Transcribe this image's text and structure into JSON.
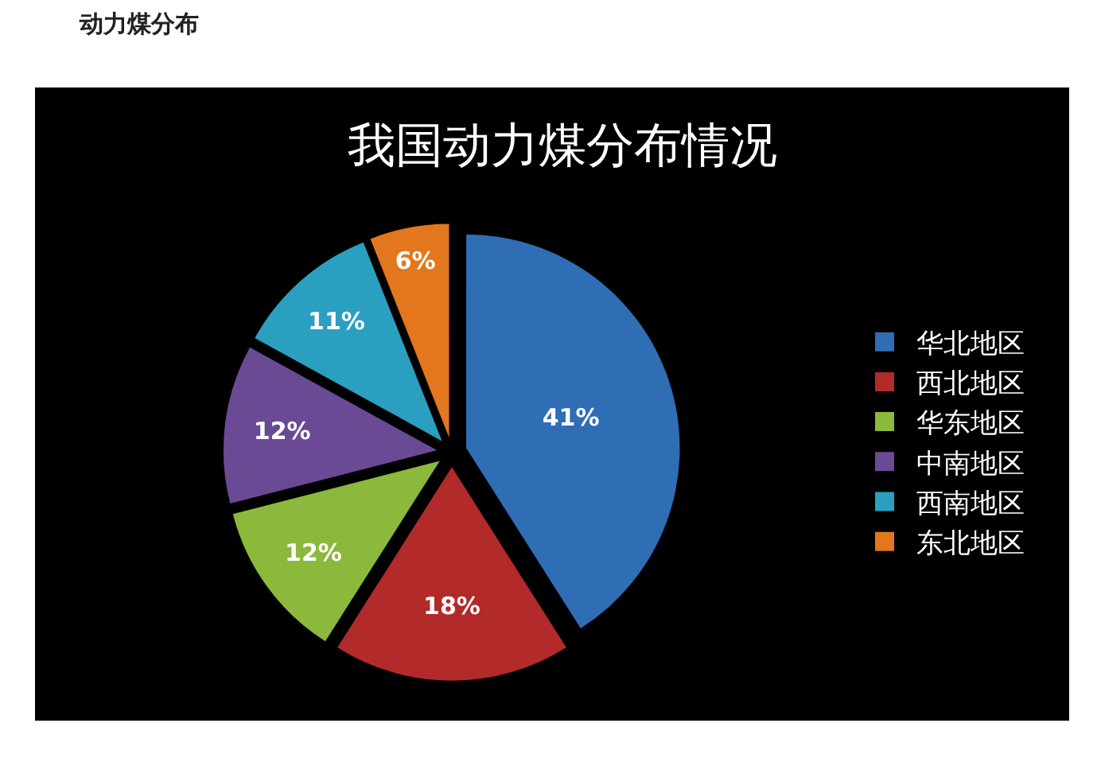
{
  "chart_data": {
    "type": "pie",
    "title": "我国动力煤分布情况",
    "annotations": [
      "动力煤分布"
    ],
    "categories": [
      "华北地区",
      "西北地区",
      "华东地区",
      "中南地区",
      "西南地区",
      "东北地区"
    ],
    "values": [
      41,
      18,
      12,
      12,
      11,
      6
    ],
    "value_labels": [
      "41%",
      "18%",
      "12%",
      "12%",
      "11%",
      "6%"
    ],
    "colors": [
      "#2f6db5",
      "#b22a2a",
      "#8cb83c",
      "#6a4a95",
      "#2b9fbf",
      "#e3771d"
    ],
    "legend": "right"
  }
}
